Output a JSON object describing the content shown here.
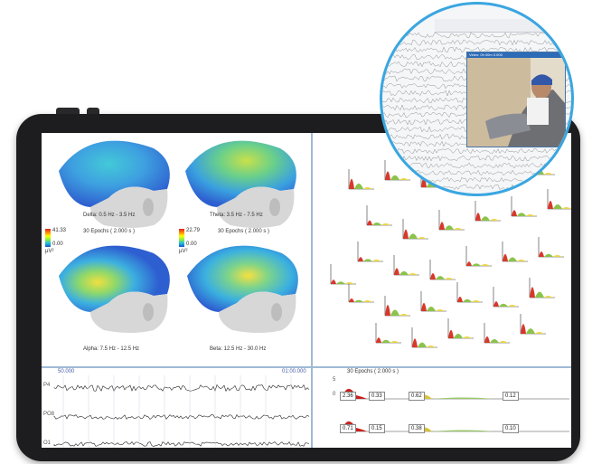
{
  "topomaps": [
    {
      "band_label": "Delta: 0.5 Hz - 3.5 Hz",
      "scale_max": "",
      "scale_min": "",
      "epochs": ""
    },
    {
      "band_label": "Theta: 3.5 Hz - 7.5 Hz",
      "scale_max": "",
      "scale_min": "",
      "epochs": ""
    },
    {
      "band_label": "Alpha: 7.5 Hz - 12.5 Hz",
      "scale_max": "41.33",
      "scale_min": "0.00",
      "epochs": "30 Epochs ( 2.000 s )"
    },
    {
      "band_label": "Beta: 12.5 Hz - 30.0 Hz",
      "scale_max": "22.79",
      "scale_min": "0.00",
      "epochs": "30 Epochs ( 2.000 s )"
    }
  ],
  "scale_unit": "µV²",
  "eeg": {
    "start_time": "50.000",
    "end_time": "01:00.000",
    "channels": [
      "P4",
      "PO8",
      "O1"
    ]
  },
  "spectrum_panel": {
    "title": "30 Epochs ( 2.000 s )",
    "scale_top": "5",
    "scale_zero": "0",
    "row1_values": [
      "2.36",
      "0.33",
      "0.62",
      "0.12"
    ],
    "row2_values": [
      "0.71",
      "0.15",
      "0.38",
      "0.10"
    ]
  },
  "video_window": {
    "title": "Video: 0h 00m 0.000"
  },
  "colors": {
    "accent_ring": "#3aa6e0",
    "frame": "#1d1d1f",
    "divider": "#9fb9d6"
  }
}
